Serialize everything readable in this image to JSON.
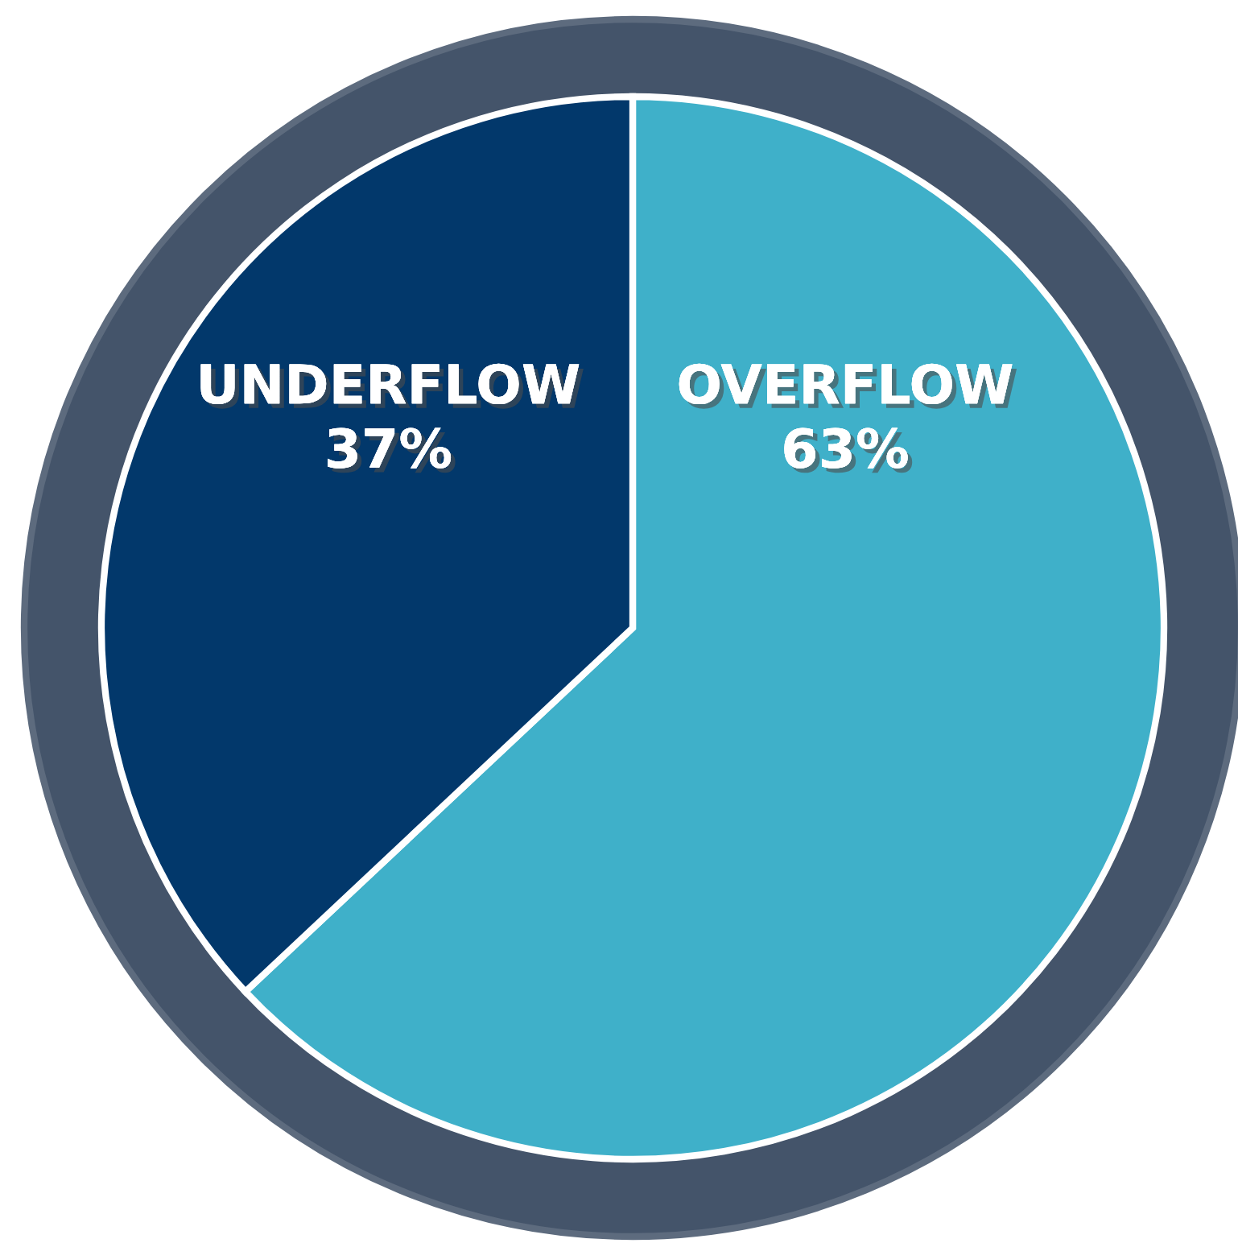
{
  "chart_data": {
    "type": "pie",
    "categories": [
      "OVERFLOW",
      "UNDERFLOW"
    ],
    "values": [
      63,
      37
    ],
    "colors": [
      "#3fb0c9",
      "#02386b"
    ],
    "value_labels": [
      "63%",
      "37%"
    ],
    "legend": false
  }
}
